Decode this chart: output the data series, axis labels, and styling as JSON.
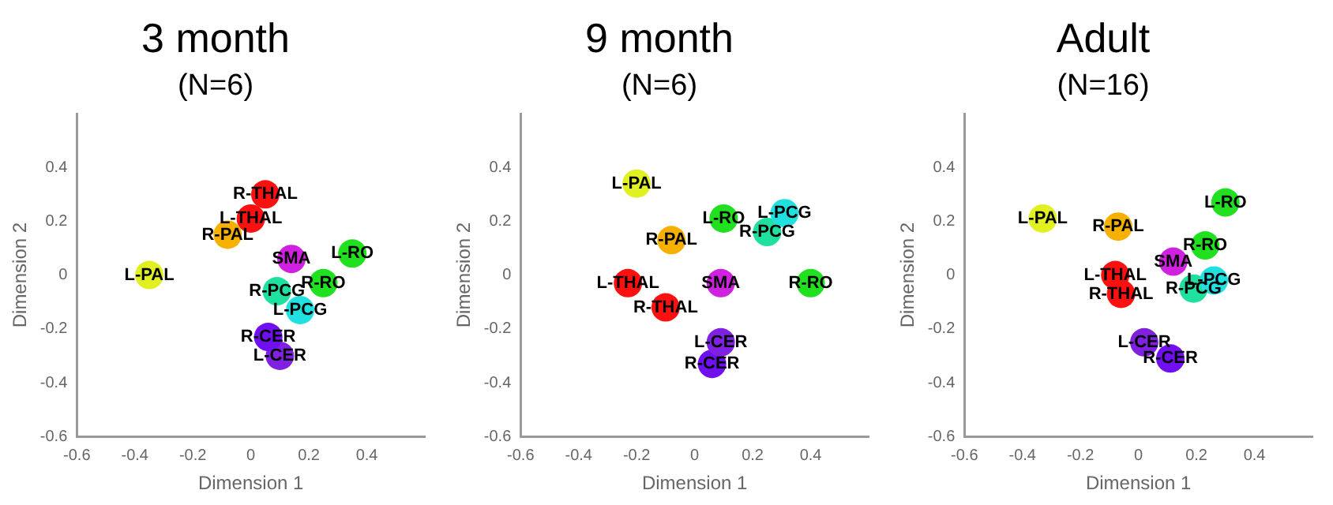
{
  "chart_data": [
    {
      "type": "scatter",
      "title": "3 month",
      "subtitle": "(N=6)",
      "xlabel": "Dimension 1",
      "ylabel": "Dimension 2",
      "xlim": [
        -0.6,
        0.6
      ],
      "ylim": [
        -0.6,
        0.6
      ],
      "xticks": [
        -0.6,
        -0.4,
        -0.2,
        0,
        0.2,
        0.4
      ],
      "yticks": [
        -0.6,
        -0.4,
        -0.2,
        0,
        0.2,
        0.4
      ],
      "grid": false,
      "legend": false,
      "marker": "circle",
      "series": [
        {
          "name": "L-PAL",
          "color": "#e0f020",
          "x": [
            -0.35
          ],
          "values": [
            0
          ]
        },
        {
          "name": "R-PAL",
          "color": "#f5b000",
          "x": [
            -0.08
          ],
          "values": [
            0.15
          ]
        },
        {
          "name": "L-THAL",
          "color": "#ff1010",
          "x": [
            0
          ],
          "values": [
            0.21
          ]
        },
        {
          "name": "R-THAL",
          "color": "#ff1010",
          "x": [
            0.05
          ],
          "values": [
            0.3
          ]
        },
        {
          "name": "SMA",
          "color": "#d020e0",
          "x": [
            0.14
          ],
          "values": [
            0.06
          ]
        },
        {
          "name": "L-RO",
          "color": "#20e020",
          "x": [
            0.35
          ],
          "values": [
            0.08
          ]
        },
        {
          "name": "R-RO",
          "color": "#20e020",
          "x": [
            0.25
          ],
          "values": [
            -0.03
          ]
        },
        {
          "name": "R-PCG",
          "color": "#20e0a0",
          "x": [
            0.09
          ],
          "values": [
            -0.06
          ]
        },
        {
          "name": "L-PCG",
          "color": "#20e0e0",
          "x": [
            0.17
          ],
          "values": [
            -0.13
          ]
        },
        {
          "name": "R-CER",
          "color": "#7010f0",
          "x": [
            0.06
          ],
          "values": [
            -0.23
          ]
        },
        {
          "name": "L-CER",
          "color": "#8020e0",
          "x": [
            0.1
          ],
          "values": [
            -0.3
          ]
        }
      ]
    },
    {
      "type": "scatter",
      "title": "9 month",
      "subtitle": "(N=6)",
      "xlabel": "Dimension 1",
      "ylabel": "Dimension 2",
      "xlim": [
        -0.6,
        0.6
      ],
      "ylim": [
        -0.6,
        0.6
      ],
      "xticks": [
        -0.6,
        -0.4,
        -0.2,
        0,
        0.2,
        0.4
      ],
      "yticks": [
        -0.6,
        -0.4,
        -0.2,
        0,
        0.2,
        0.4
      ],
      "grid": false,
      "legend": false,
      "marker": "circle",
      "series": [
        {
          "name": "L-PAL",
          "color": "#e0f020",
          "x": [
            -0.2
          ],
          "values": [
            0.34
          ]
        },
        {
          "name": "R-PAL",
          "color": "#f5b000",
          "x": [
            -0.08
          ],
          "values": [
            0.13
          ]
        },
        {
          "name": "L-THAL",
          "color": "#ff1010",
          "x": [
            -0.23
          ],
          "values": [
            -0.03
          ]
        },
        {
          "name": "R-THAL",
          "color": "#ff1010",
          "x": [
            -0.1
          ],
          "values": [
            -0.12
          ]
        },
        {
          "name": "SMA",
          "color": "#d020e0",
          "x": [
            0.09
          ],
          "values": [
            -0.03
          ]
        },
        {
          "name": "L-RO",
          "color": "#20e020",
          "x": [
            0.1
          ],
          "values": [
            0.21
          ]
        },
        {
          "name": "R-RO",
          "color": "#20e020",
          "x": [
            0.4
          ],
          "values": [
            -0.03
          ]
        },
        {
          "name": "L-PCG",
          "color": "#20e0e0",
          "x": [
            0.31
          ],
          "values": [
            0.23
          ]
        },
        {
          "name": "R-PCG",
          "color": "#20e0a0",
          "x": [
            0.25
          ],
          "values": [
            0.16
          ]
        },
        {
          "name": "L-CER",
          "color": "#8020e0",
          "x": [
            0.09
          ],
          "values": [
            -0.25
          ]
        },
        {
          "name": "R-CER",
          "color": "#7010f0",
          "x": [
            0.06
          ],
          "values": [
            -0.33
          ]
        }
      ]
    },
    {
      "type": "scatter",
      "title": "Adult",
      "subtitle": "(N=16)",
      "xlabel": "Dimension 1",
      "ylabel": "Dimension 2",
      "xlim": [
        -0.6,
        0.6
      ],
      "ylim": [
        -0.6,
        0.6
      ],
      "xticks": [
        -0.6,
        -0.4,
        -0.2,
        0,
        0.2,
        0.4
      ],
      "yticks": [
        -0.6,
        -0.4,
        -0.2,
        0,
        0.2,
        0.4
      ],
      "grid": false,
      "legend": false,
      "marker": "circle",
      "series": [
        {
          "name": "L-PAL",
          "color": "#e0f020",
          "x": [
            -0.33
          ],
          "values": [
            0.21
          ]
        },
        {
          "name": "R-PAL",
          "color": "#f5b000",
          "x": [
            -0.07
          ],
          "values": [
            0.18
          ]
        },
        {
          "name": "L-RO",
          "color": "#20e020",
          "x": [
            0.3
          ],
          "values": [
            0.27
          ]
        },
        {
          "name": "R-RO",
          "color": "#20e020",
          "x": [
            0.23
          ],
          "values": [
            0.11
          ]
        },
        {
          "name": "SMA",
          "color": "#d020e0",
          "x": [
            0.12
          ],
          "values": [
            0.05
          ]
        },
        {
          "name": "L-PCG",
          "color": "#20e0e0",
          "x": [
            0.26
          ],
          "values": [
            -0.02
          ]
        },
        {
          "name": "R-PCG",
          "color": "#20e0a0",
          "x": [
            0.19
          ],
          "values": [
            -0.05
          ]
        },
        {
          "name": "L-THAL",
          "color": "#ff1010",
          "x": [
            -0.08
          ],
          "values": [
            0
          ]
        },
        {
          "name": "R-THAL",
          "color": "#ff1010",
          "x": [
            -0.06
          ],
          "values": [
            -0.07
          ]
        },
        {
          "name": "L-CER",
          "color": "#8020e0",
          "x": [
            0.02
          ],
          "values": [
            -0.25
          ]
        },
        {
          "name": "R-CER",
          "color": "#7010f0",
          "x": [
            0.11
          ],
          "values": [
            -0.31
          ]
        }
      ]
    }
  ]
}
